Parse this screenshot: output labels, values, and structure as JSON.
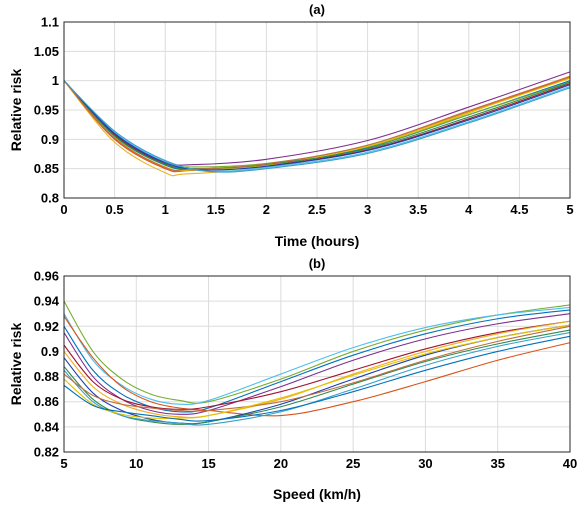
{
  "chart_data": [
    {
      "type": "line",
      "title": "(a)",
      "xlabel": "Time (hours)",
      "ylabel": "Relative risk",
      "xlim": [
        0,
        5
      ],
      "ylim": [
        0.8,
        1.1
      ],
      "xticks": [
        0,
        0.5,
        1,
        1.5,
        2,
        2.5,
        3,
        3.5,
        4,
        4.5,
        5
      ],
      "xtick_labels": [
        "0",
        "0.5",
        "1",
        "1.5",
        "2",
        "2.5",
        "3",
        "3.5",
        "4",
        "4.5",
        "5"
      ],
      "yticks": [
        0.8,
        0.85,
        0.9,
        0.95,
        1,
        1.05,
        1.1
      ],
      "ytick_labels": [
        "0.8",
        "0.85",
        "0.9",
        "0.95",
        "1",
        "1.05",
        "1.1"
      ],
      "grid": true,
      "legend": "none",
      "series": [
        {
          "color": "#7e2f8e",
          "x": [
            0,
            0.5,
            1,
            1.3,
            2,
            3,
            4,
            5
          ],
          "y": [
            1.0,
            0.91,
            0.862,
            0.857,
            0.866,
            0.898,
            0.955,
            1.015
          ]
        },
        {
          "color": "#edb120",
          "x": [
            0,
            0.5,
            1,
            1.2,
            2,
            3,
            4,
            5
          ],
          "y": [
            1.0,
            0.895,
            0.843,
            0.841,
            0.852,
            0.885,
            0.945,
            1.008
          ]
        },
        {
          "color": "#d95319",
          "x": [
            0,
            0.5,
            1,
            1.25,
            2,
            3,
            4,
            5
          ],
          "y": [
            1.0,
            0.9,
            0.85,
            0.847,
            0.856,
            0.888,
            0.947,
            1.005
          ]
        },
        {
          "color": "#0072bd",
          "x": [
            0,
            0.5,
            1,
            1.3,
            2,
            3,
            4,
            5
          ],
          "y": [
            1.0,
            0.905,
            0.856,
            0.85,
            0.857,
            0.886,
            0.942,
            1.0
          ]
        },
        {
          "color": "#77ac30",
          "x": [
            0,
            0.5,
            1,
            1.3,
            2,
            3,
            4,
            5
          ],
          "y": [
            1.0,
            0.907,
            0.86,
            0.853,
            0.859,
            0.887,
            0.942,
            0.998
          ]
        },
        {
          "color": "#4dbeee",
          "x": [
            0,
            0.5,
            1,
            1.4,
            2,
            3,
            4,
            5
          ],
          "y": [
            1.0,
            0.912,
            0.862,
            0.846,
            0.852,
            0.878,
            0.93,
            0.99
          ]
        },
        {
          "color": "#a2142f",
          "x": [
            0,
            0.5,
            1,
            1.35,
            2,
            3,
            4,
            5
          ],
          "y": [
            1.0,
            0.908,
            0.858,
            0.849,
            0.855,
            0.882,
            0.935,
            0.995
          ]
        },
        {
          "color": "#e6c300",
          "x": [
            0,
            0.5,
            1,
            1.3,
            2,
            3,
            4,
            5
          ],
          "y": [
            1.0,
            0.903,
            0.853,
            0.848,
            0.856,
            0.888,
            0.946,
            1.004
          ]
        },
        {
          "color": "#2f8b4e",
          "x": [
            0,
            0.5,
            1,
            1.35,
            2,
            3,
            4,
            5
          ],
          "y": [
            1.0,
            0.906,
            0.857,
            0.85,
            0.857,
            0.884,
            0.938,
            0.997
          ]
        },
        {
          "color": "#1f3fb0",
          "x": [
            0,
            0.5,
            1,
            1.4,
            2,
            3,
            4,
            5
          ],
          "y": [
            1.0,
            0.91,
            0.86,
            0.848,
            0.854,
            0.881,
            0.933,
            0.993
          ]
        },
        {
          "color": "#c06c3e",
          "x": [
            0,
            0.5,
            1,
            1.25,
            2,
            3,
            4,
            5
          ],
          "y": [
            1.0,
            0.902,
            0.852,
            0.849,
            0.858,
            0.89,
            0.949,
            1.007
          ]
        },
        {
          "color": "#38a0c8",
          "x": [
            0,
            0.5,
            1,
            1.45,
            2,
            3,
            4,
            5
          ],
          "y": [
            1.0,
            0.914,
            0.864,
            0.845,
            0.85,
            0.876,
            0.928,
            0.988
          ]
        }
      ]
    },
    {
      "type": "line",
      "title": "(b)",
      "xlabel": "Speed (km/h)",
      "ylabel": "Relative risk",
      "xlim": [
        5,
        40
      ],
      "ylim": [
        0.82,
        0.96
      ],
      "xticks": [
        5,
        10,
        15,
        20,
        25,
        30,
        35,
        40
      ],
      "xtick_labels": [
        "5",
        "10",
        "15",
        "20",
        "25",
        "30",
        "35",
        "40"
      ],
      "yticks": [
        0.82,
        0.84,
        0.86,
        0.88,
        0.9,
        0.92,
        0.94,
        0.96
      ],
      "ytick_labels": [
        "0.82",
        "0.84",
        "0.86",
        "0.88",
        "0.9",
        "0.92",
        "0.94",
        "0.96"
      ],
      "grid": true,
      "legend": "none",
      "series": [
        {
          "color": "#77ac30",
          "x": [
            5,
            7,
            9,
            11,
            13,
            15,
            20,
            25,
            30,
            35,
            40
          ],
          "y": [
            0.94,
            0.9,
            0.878,
            0.866,
            0.861,
            0.86,
            0.878,
            0.9,
            0.917,
            0.929,
            0.937
          ]
        },
        {
          "color": "#4dbeee",
          "x": [
            5,
            7,
            9,
            11,
            13,
            15,
            20,
            25,
            30,
            35,
            40
          ],
          "y": [
            0.93,
            0.893,
            0.873,
            0.862,
            0.858,
            0.861,
            0.882,
            0.903,
            0.919,
            0.929,
            0.935
          ]
        },
        {
          "color": "#0072bd",
          "x": [
            5,
            7,
            9,
            11,
            13,
            15,
            20,
            25,
            30,
            35,
            40
          ],
          "y": [
            0.92,
            0.885,
            0.866,
            0.856,
            0.852,
            0.855,
            0.876,
            0.897,
            0.914,
            0.926,
            0.933
          ]
        },
        {
          "color": "#7e2f8e",
          "x": [
            5,
            7,
            9,
            11,
            13,
            15,
            20,
            25,
            30,
            35,
            40
          ],
          "y": [
            0.915,
            0.88,
            0.862,
            0.853,
            0.85,
            0.853,
            0.872,
            0.893,
            0.91,
            0.922,
            0.93
          ]
        },
        {
          "color": "#d95319",
          "x": [
            5,
            7,
            9,
            11,
            13,
            15,
            20,
            25,
            30,
            35,
            40
          ],
          "y": [
            0.928,
            0.895,
            0.872,
            0.86,
            0.855,
            0.853,
            0.849,
            0.86,
            0.876,
            0.893,
            0.907
          ]
        },
        {
          "color": "#a2142f",
          "x": [
            5,
            7,
            9,
            11,
            13,
            15,
            20,
            25,
            30,
            35,
            40
          ],
          "y": [
            0.905,
            0.876,
            0.862,
            0.856,
            0.854,
            0.856,
            0.868,
            0.885,
            0.902,
            0.915,
            0.924
          ]
        },
        {
          "color": "#edb120",
          "x": [
            5,
            7,
            9,
            11,
            13,
            15,
            20,
            25,
            30,
            35,
            40
          ],
          "y": [
            0.9,
            0.872,
            0.858,
            0.851,
            0.848,
            0.849,
            0.862,
            0.882,
            0.9,
            0.914,
            0.924
          ]
        },
        {
          "color": "#1f3fb0",
          "x": [
            5,
            7,
            9,
            11,
            13,
            15,
            20,
            25,
            30,
            35,
            40
          ],
          "y": [
            0.895,
            0.867,
            0.853,
            0.846,
            0.843,
            0.844,
            0.858,
            0.878,
            0.897,
            0.911,
            0.921
          ]
        },
        {
          "color": "#2f8b4e",
          "x": [
            5,
            7,
            9,
            11,
            13,
            15,
            20,
            25,
            30,
            35,
            40
          ],
          "y": [
            0.888,
            0.862,
            0.849,
            0.844,
            0.842,
            0.844,
            0.856,
            0.874,
            0.892,
            0.906,
            0.917
          ]
        },
        {
          "color": "#38a0c8",
          "x": [
            5,
            7,
            9,
            11,
            13,
            15,
            20,
            25,
            30,
            35,
            40
          ],
          "y": [
            0.885,
            0.86,
            0.849,
            0.845,
            0.843,
            0.842,
            0.852,
            0.87,
            0.889,
            0.904,
            0.915
          ]
        },
        {
          "color": "#c06c3e",
          "x": [
            5,
            7,
            9,
            11,
            13,
            15,
            20,
            25,
            30,
            35,
            40
          ],
          "y": [
            0.882,
            0.865,
            0.858,
            0.855,
            0.853,
            0.853,
            0.86,
            0.875,
            0.893,
            0.908,
            0.92
          ]
        },
        {
          "color": "#e6c300",
          "x": [
            5,
            7,
            9,
            11,
            13,
            15,
            20,
            25,
            30,
            35,
            40
          ],
          "y": [
            0.878,
            0.858,
            0.85,
            0.847,
            0.847,
            0.849,
            0.863,
            0.881,
            0.898,
            0.911,
            0.921
          ]
        },
        {
          "color": "#0072bd",
          "x": [
            5,
            7,
            9,
            11,
            13,
            15,
            20,
            25,
            30,
            35,
            40
          ],
          "y": [
            0.873,
            0.857,
            0.852,
            0.849,
            0.846,
            0.845,
            0.853,
            0.868,
            0.885,
            0.9,
            0.912
          ]
        }
      ]
    }
  ]
}
